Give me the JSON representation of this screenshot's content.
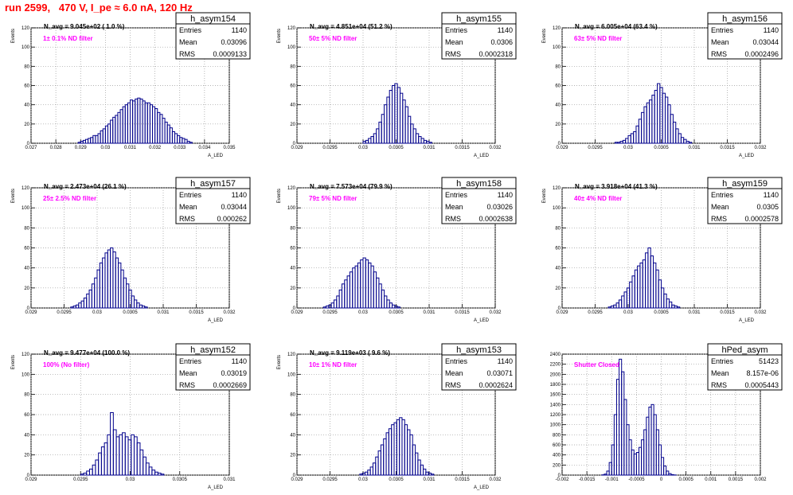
{
  "title": "run 2599,   470 V, I_pe ≈ 6.0 nA, 120 Hz",
  "colors": {
    "hist": "#00008b",
    "filter_label": "#ff00ff",
    "title": "#ff0000",
    "grid": "#9a9a9a"
  },
  "chart_data": [
    {
      "type": "bar",
      "name": "h_asym154",
      "navg": "N_avg = 9.045e+02 ( 1.0 %)",
      "filter": "1± 0.1% ND filter",
      "stats": {
        "Entries": "1140",
        "Mean": "0.03096",
        "RMS": "0.0009133"
      },
      "ylabel": "Events",
      "xlabel": "A_LED",
      "ylim": [
        0,
        120
      ],
      "yticks": [
        0,
        20,
        40,
        60,
        80,
        100,
        120
      ],
      "xlim": [
        0.027,
        0.035
      ],
      "xticks": [
        "0.027",
        "0.028",
        "0.029",
        "0.03",
        "0.031",
        "0.032",
        "0.033",
        "0.034",
        "0.035"
      ],
      "bin_start": 0.0289,
      "bin_width": 0.0001,
      "values": [
        1,
        2,
        3,
        4,
        5,
        6,
        8,
        8,
        10,
        13,
        15,
        18,
        20,
        24,
        27,
        29,
        32,
        35,
        38,
        40,
        42,
        45,
        44,
        46,
        47,
        46,
        44,
        42,
        42,
        40,
        38,
        36,
        32,
        30,
        26,
        22,
        19,
        16,
        12,
        10,
        8,
        6,
        5,
        4,
        2,
        1
      ]
    },
    {
      "type": "bar",
      "name": "h_asym155",
      "navg": "N_avg = 4.851e+04 (51.2 %)",
      "filter": "50± 5% ND filter",
      "stats": {
        "Entries": "1140",
        "Mean": "0.0306",
        "RMS": "0.0002318"
      },
      "ylabel": "Events",
      "xlabel": "A_LED",
      "ylim": [
        0,
        120
      ],
      "yticks": [
        0,
        20,
        40,
        60,
        80,
        100,
        120
      ],
      "xlim": [
        0.029,
        0.032
      ],
      "xticks": [
        "0.029",
        "0.0295",
        "0.03",
        "0.0305",
        "0.031",
        "0.0315",
        "0.032"
      ],
      "bin_start": 0.03,
      "bin_width": 4e-05,
      "values": [
        2,
        3,
        5,
        7,
        10,
        15,
        22,
        30,
        40,
        48,
        55,
        60,
        62,
        58,
        52,
        45,
        38,
        28,
        20,
        15,
        10,
        7,
        5,
        3,
        2,
        1
      ]
    },
    {
      "type": "bar",
      "name": "h_asym156",
      "navg": "N_avg = 6.005e+04 (63.4 %)",
      "filter": "63± 5% ND filter",
      "stats": {
        "Entries": "1140",
        "Mean": "0.03044",
        "RMS": "0.0002496"
      },
      "ylabel": "Events",
      "xlabel": "A_LED",
      "ylim": [
        0,
        120
      ],
      "yticks": [
        0,
        20,
        40,
        60,
        80,
        100,
        120
      ],
      "xlim": [
        0.029,
        0.032
      ],
      "xticks": [
        "0.029",
        "0.0295",
        "0.03",
        "0.0305",
        "0.031",
        "0.0315",
        "0.032"
      ],
      "bin_start": 0.0298,
      "bin_width": 4e-05,
      "values": [
        1,
        1,
        2,
        3,
        5,
        8,
        10,
        12,
        18,
        25,
        32,
        38,
        42,
        45,
        50,
        55,
        62,
        58,
        52,
        48,
        40,
        30,
        22,
        15,
        10,
        6,
        4,
        2,
        1
      ]
    },
    {
      "type": "bar",
      "name": "h_asym157",
      "navg": "N_avg = 2.473e+04 (26.1 %)",
      "filter": "25± 2.5% ND filter",
      "stats": {
        "Entries": "1140",
        "Mean": "0.03044",
        "RMS": "0.000262"
      },
      "ylabel": "Events",
      "xlabel": "A_LED",
      "ylim": [
        0,
        120
      ],
      "yticks": [
        0,
        20,
        40,
        60,
        80,
        100,
        120
      ],
      "xlim": [
        0.029,
        0.032
      ],
      "xticks": [
        "0.029",
        "0.0295",
        "0.03",
        "0.0305",
        "0.031",
        "0.0315",
        "0.032"
      ],
      "bin_start": 0.0296,
      "bin_width": 4e-05,
      "values": [
        1,
        2,
        3,
        5,
        7,
        10,
        14,
        18,
        24,
        30,
        38,
        45,
        50,
        55,
        58,
        60,
        56,
        50,
        45,
        38,
        30,
        24,
        18,
        12,
        8,
        5,
        3,
        2,
        1
      ]
    },
    {
      "type": "bar",
      "name": "h_asym158",
      "navg": "N_avg = 7.573e+04 (79.9 %)",
      "filter": "79± 5% ND filter",
      "stats": {
        "Entries": "1140",
        "Mean": "0.03026",
        "RMS": "0.0002638"
      },
      "ylabel": "Events",
      "xlabel": "A_LED",
      "ylim": [
        0,
        120
      ],
      "yticks": [
        0,
        20,
        40,
        60,
        80,
        100,
        120
      ],
      "xlim": [
        0.029,
        0.032
      ],
      "xticks": [
        "0.029",
        "0.0295",
        "0.03",
        "0.0305",
        "0.031",
        "0.0315",
        "0.032"
      ],
      "bin_start": 0.0294,
      "bin_width": 4e-05,
      "values": [
        1,
        2,
        3,
        5,
        8,
        12,
        18,
        24,
        28,
        32,
        36,
        40,
        42,
        45,
        48,
        50,
        48,
        45,
        42,
        36,
        30,
        24,
        18,
        12,
        8,
        5,
        3,
        2,
        1
      ]
    },
    {
      "type": "bar",
      "name": "h_asym159",
      "navg": "N_avg = 3.918e+04 (41.3 %)",
      "filter": "40± 4% ND filter",
      "stats": {
        "Entries": "1140",
        "Mean": "0.0305",
        "RMS": "0.0002578"
      },
      "ylabel": "Events",
      "xlabel": "A_LED",
      "ylim": [
        0,
        120
      ],
      "yticks": [
        0,
        20,
        40,
        60,
        80,
        100,
        120
      ],
      "xlim": [
        0.029,
        0.032
      ],
      "xticks": [
        "0.029",
        "0.0295",
        "0.03",
        "0.0305",
        "0.031",
        "0.0315",
        "0.032"
      ],
      "bin_start": 0.0297,
      "bin_width": 4e-05,
      "values": [
        1,
        2,
        3,
        5,
        8,
        12,
        16,
        20,
        26,
        32,
        38,
        42,
        45,
        48,
        55,
        60,
        52,
        45,
        38,
        28,
        20,
        14,
        9,
        6,
        3,
        2,
        1
      ]
    },
    {
      "type": "bar",
      "name": "h_asym152",
      "navg": "N_avg = 9.477e+04 (100.0 %)",
      "filter": "100% (No filter)",
      "stats": {
        "Entries": "1140",
        "Mean": "0.03019",
        "RMS": "0.0002669"
      },
      "ylabel": "Events",
      "xlabel": "A_LED",
      "ylim": [
        0,
        120
      ],
      "yticks": [
        0,
        20,
        40,
        60,
        80,
        100,
        120
      ],
      "xlim": [
        0.029,
        0.031
      ],
      "xticks": [
        "0.029",
        "0.0295",
        "0.03",
        "0.0305",
        "0.031"
      ],
      "bin_start": 0.0295,
      "bin_width": 3e-05,
      "values": [
        1,
        2,
        4,
        6,
        10,
        15,
        22,
        28,
        32,
        40,
        62,
        45,
        38,
        40,
        42,
        38,
        35,
        40,
        38,
        32,
        25,
        18,
        12,
        8,
        5,
        3,
        2,
        1
      ]
    },
    {
      "type": "bar",
      "name": "h_asym153",
      "navg": "N_avg = 9.119e+03 ( 9.6 %)",
      "filter": "10± 1% ND filter",
      "stats": {
        "Entries": "1140",
        "Mean": "0.03071",
        "RMS": "0.0002624"
      },
      "ylabel": "Events",
      "xlabel": "A_LED",
      "ylim": [
        0,
        120
      ],
      "yticks": [
        0,
        20,
        40,
        60,
        80,
        100,
        120
      ],
      "xlim": [
        0.029,
        0.032
      ],
      "xticks": [
        "0.029",
        "0.0295",
        "0.03",
        "0.0305",
        "0.031",
        "0.0315",
        "0.032"
      ],
      "bin_start": 0.02995,
      "bin_width": 4e-05,
      "values": [
        1,
        2,
        3,
        5,
        8,
        12,
        18,
        24,
        30,
        36,
        42,
        46,
        50,
        52,
        55,
        57,
        55,
        50,
        45,
        40,
        30,
        22,
        15,
        10,
        6,
        3,
        2,
        1
      ]
    },
    {
      "type": "bar",
      "name": "hPed_asym",
      "navg": "",
      "filter": "Shutter Closed",
      "stats": {
        "Entries": "51423",
        "Mean": "8.157e-06",
        "RMS": "0.0005443"
      },
      "ylabel": "",
      "xlabel": "",
      "ylim": [
        0,
        2400
      ],
      "yticks": [
        0,
        200,
        400,
        600,
        800,
        1000,
        1200,
        1400,
        1600,
        1800,
        2000,
        2200,
        2400
      ],
      "xlim": [
        -0.002,
        0.002
      ],
      "xticks": [
        "-0.002",
        "-0.0015",
        "-0.001",
        "-0.0005",
        "0",
        "0.0005",
        "0.001",
        "0.0015",
        "0.002"
      ],
      "bin_start": -0.0012,
      "bin_width": 5e-05,
      "values": [
        5,
        20,
        80,
        250,
        600,
        1200,
        1900,
        2300,
        2050,
        1500,
        1000,
        700,
        500,
        420,
        450,
        550,
        700,
        900,
        1150,
        1350,
        1400,
        1200,
        900,
        600,
        350,
        180,
        80,
        30,
        10,
        3
      ]
    }
  ]
}
